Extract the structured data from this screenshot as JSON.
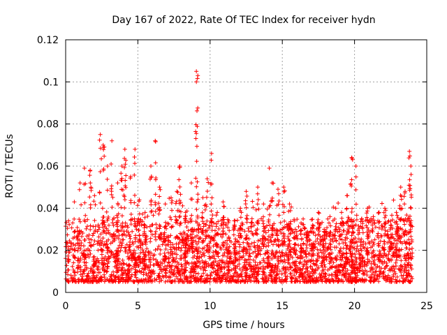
{
  "chart_data": {
    "type": "scatter",
    "title": "Day 167 of 2022, Rate Of TEC Index for receiver hydn",
    "xlabel": "GPS time / hours",
    "ylabel": "ROTI / TECUs",
    "xlim": [
      0,
      25
    ],
    "ylim": [
      0,
      0.12
    ],
    "x_ticks": [
      0,
      5,
      10,
      15,
      20,
      25
    ],
    "x_tick_labels": [
      "0",
      "5",
      "10",
      "15",
      "20",
      "25"
    ],
    "y_ticks": [
      0,
      0.02,
      0.04,
      0.06,
      0.08,
      0.1,
      0.12
    ],
    "y_tick_labels": [
      "0",
      "0.02",
      "0.04",
      "0.06",
      "0.08",
      "0.1",
      "0.12"
    ],
    "grid": true,
    "marker": "+",
    "colors": {
      "points": "#ff0000",
      "grid": "#a0a0a0",
      "axis": "#000000"
    },
    "series": [
      {
        "name": "ROTI",
        "x": [
          0.2,
          0.6,
          1.0,
          1.3,
          1.7,
          2.0,
          2.4,
          2.6,
          2.9,
          3.2,
          3.6,
          3.9,
          4.1,
          4.5,
          4.8,
          5.1,
          5.5,
          5.9,
          6.2,
          6.5,
          6.9,
          7.3,
          7.7,
          7.9,
          8.3,
          8.7,
          9.05,
          9.15,
          9.5,
          9.8,
          10.1,
          10.5,
          10.9,
          11.3,
          11.7,
          12.1,
          12.5,
          12.9,
          13.3,
          13.7,
          14.1,
          14.3,
          14.7,
          15.1,
          15.5,
          15.9,
          16.3,
          16.7,
          17.1,
          17.5,
          17.9,
          18.3,
          18.7,
          19.1,
          19.5,
          19.8,
          20.1,
          20.5,
          20.9,
          21.3,
          21.7,
          22.1,
          22.5,
          22.9,
          23.2,
          23.5,
          23.8,
          23.9
        ],
        "y": [
          0.034,
          0.043,
          0.052,
          0.059,
          0.058,
          0.046,
          0.075,
          0.07,
          0.06,
          0.072,
          0.052,
          0.06,
          0.068,
          0.055,
          0.068,
          0.044,
          0.038,
          0.06,
          0.072,
          0.05,
          0.042,
          0.045,
          0.048,
          0.06,
          0.038,
          0.052,
          0.105,
          0.103,
          0.045,
          0.054,
          0.066,
          0.038,
          0.043,
          0.034,
          0.032,
          0.04,
          0.048,
          0.035,
          0.05,
          0.042,
          0.059,
          0.052,
          0.049,
          0.05,
          0.042,
          0.03,
          0.033,
          0.026,
          0.032,
          0.038,
          0.03,
          0.036,
          0.04,
          0.038,
          0.046,
          0.064,
          0.06,
          0.035,
          0.04,
          0.036,
          0.038,
          0.04,
          0.032,
          0.038,
          0.05,
          0.048,
          0.067,
          0.06
        ]
      }
    ],
    "data_density_note": "baseline cloud of points roughly between 0.005 and 0.03 across 0-24 h"
  }
}
